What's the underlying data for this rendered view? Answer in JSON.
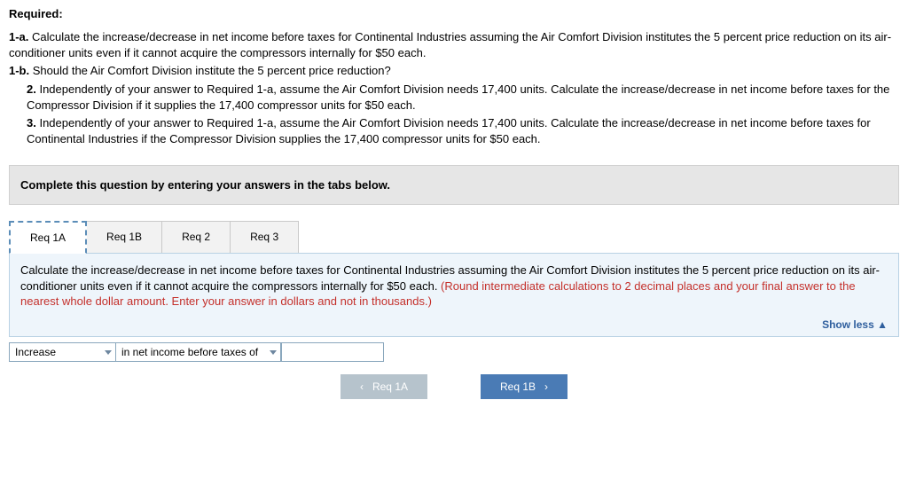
{
  "required_heading": "Required:",
  "requirements": {
    "r1a_num": "1-a.",
    "r1a": "Calculate the increase/decrease in net income before taxes for Continental Industries assuming the Air Comfort Division institutes the 5 percent price reduction on its air-conditioner units even if it cannot acquire the compressors internally for $50 each.",
    "r1b_num": "1-b.",
    "r1b": "Should the Air Comfort Division institute the 5 percent price reduction?",
    "r2_num": "2.",
    "r2": "Independently of your answer to Required 1-a, assume the Air Comfort Division needs 17,400 units. Calculate the increase/decrease in net income before taxes for the Compressor Division if it supplies the 17,400 compressor units for $50 each.",
    "r3_num": "3.",
    "r3": "Independently of your answer to Required 1-a, assume the Air Comfort Division needs 17,400 units. Calculate the increase/decrease in net income before taxes for Continental Industries if the Compressor Division supplies the 17,400 compressor units for $50 each."
  },
  "instruction": "Complete this question by entering your answers in the tabs below.",
  "tabs": {
    "t1": "Req 1A",
    "t2": "Req 1B",
    "t3": "Req 2",
    "t4": "Req 3"
  },
  "panel": {
    "prompt_main": "Calculate the increase/decrease in net income before taxes for Continental Industries assuming the Air Comfort Division institutes the 5 percent price reduction on its air-conditioner units even if it cannot acquire the compressors internally for $50 each. ",
    "prompt_hint": "(Round intermediate calculations to 2 decimal places and your final answer to the nearest whole dollar amount. Enter your answer in dollars and not in thousands.)",
    "show_less": "Show less ▲"
  },
  "answer": {
    "direction_value": "Increase",
    "mid_label": "in net income before taxes of",
    "amount_value": ""
  },
  "nav": {
    "prev": "Req 1A",
    "next": "Req 1B"
  }
}
